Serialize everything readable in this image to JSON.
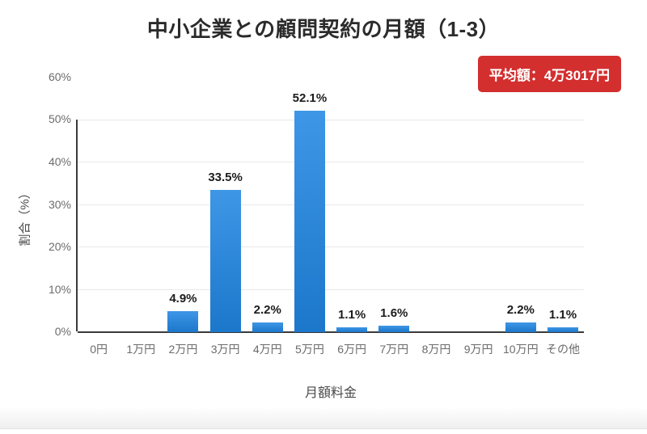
{
  "page": {
    "title": "中小企業との顧問契約の月額（1-3）",
    "average_badge": "平均額：4万3017円",
    "badge_color": "#d32f2f"
  },
  "chart_data": {
    "type": "bar",
    "title": "中小企業との顧問契約の月額（1-3）",
    "categories": [
      "0円",
      "1万円",
      "2万円",
      "3万円",
      "4万円",
      "5万円",
      "6万円",
      "7万円",
      "8万円",
      "9万円",
      "10万円",
      "その他"
    ],
    "values": [
      0,
      0,
      4.9,
      33.5,
      2.2,
      52.1,
      1.1,
      1.6,
      0,
      0,
      2.2,
      1.1
    ],
    "value_labels": [
      "",
      "",
      "4.9%",
      "33.5%",
      "2.2%",
      "52.1%",
      "1.1%",
      "1.6%",
      "",
      "",
      "2.2%",
      "1.1%"
    ],
    "xlabel": "月額料金",
    "ylabel": "割合（%）",
    "ylim": [
      0,
      60
    ],
    "ytick_values": [
      0,
      10,
      20,
      30,
      40,
      50,
      60
    ],
    "ytick_labels": [
      "0%",
      "10%",
      "20%",
      "30%",
      "40%",
      "50%",
      "60%"
    ],
    "grid": true,
    "legend": "none",
    "bar_color": "#1f85e2",
    "annotation": "平均額：4万3017円"
  }
}
